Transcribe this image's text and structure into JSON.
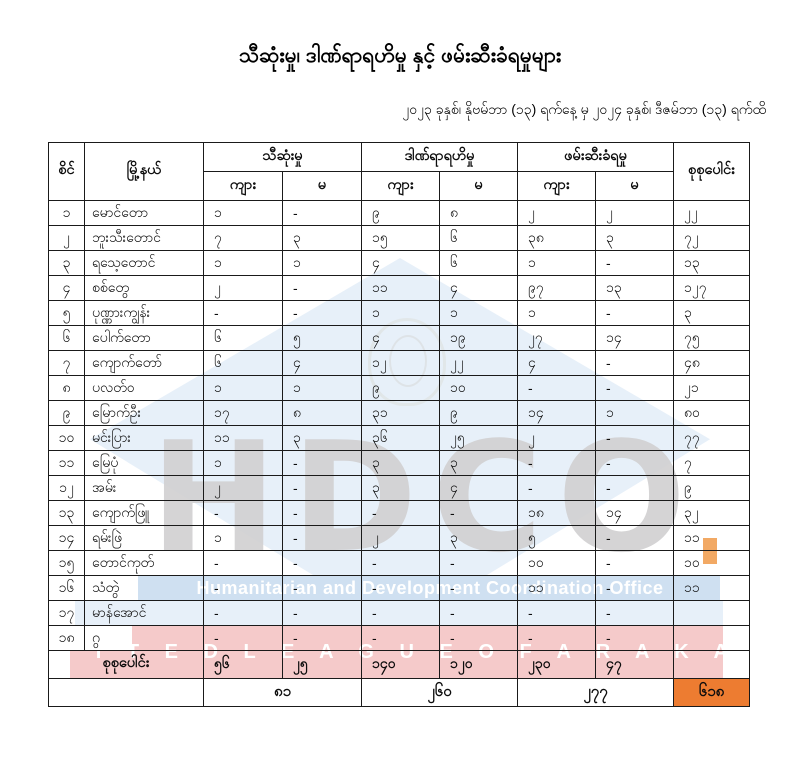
{
  "page": {
    "title": "သီဆုံးမှု၊ ဒါဏ်ရာရဟိမှု နှင့် ဖမ်းဆီးခံရမှုများ",
    "date_range": "၂၀၂၃ ခုနှစ်၊ နိုဗမ်ဘာ (၁၃) ရက်နေ့ မှ ၂၀၂၄ ခုနှစ်၊ ဒီဇမ်ဘာ (၁၃) ရက်ထိ"
  },
  "table": {
    "headers": {
      "serial": "စိင်",
      "township": "မြို့နယ်",
      "group_deaths": "သီဆုံးမှု",
      "group_injuries": "ဒါဏ်ရာရဟိမှု",
      "group_arrests": "ဖမ်းဆီးခံရမှု",
      "male": "ကျား",
      "female": "မ",
      "total": "စုစုပေါင်း"
    },
    "rows": [
      {
        "no": "၁",
        "township": "မောင်တော",
        "cells": [
          "၁",
          "-",
          "၉",
          "၈",
          "၂",
          "၂"
        ],
        "total": "၂၂"
      },
      {
        "no": "၂",
        "township": "ဘူးသီးတောင်",
        "cells": [
          "၇",
          "၃",
          "၁၅",
          "၆",
          "၃၈",
          "၃"
        ],
        "total": "၇၂"
      },
      {
        "no": "၃",
        "township": "ရသေ့တောင်",
        "cells": [
          "၁",
          "၁",
          "၄",
          "၆",
          "၁",
          "-"
        ],
        "total": "၁၃"
      },
      {
        "no": "၄",
        "township": "စစ်တွေ",
        "cells": [
          "၂",
          "-",
          "၁၁",
          "၄",
          "၉၇",
          "၁၃"
        ],
        "total": "၁၂၇"
      },
      {
        "no": "၅",
        "township": "ပုဏ္ဏားကျွန်း",
        "cells": [
          "-",
          "-",
          "၁",
          "၁",
          "၁",
          "-"
        ],
        "total": "၃"
      },
      {
        "no": "၆",
        "township": "ပေါက်တော",
        "cells": [
          "၆",
          "၅",
          "၄",
          "၁၉",
          "၂၇",
          "၁၄"
        ],
        "total": "၇၅"
      },
      {
        "no": "၇",
        "township": "ကျောက်တော်",
        "cells": [
          "၆",
          "၄",
          "၁၂",
          "၂၂",
          "၄",
          "-"
        ],
        "total": "၄၈"
      },
      {
        "no": "၈",
        "township": "ပလတ်ဝ",
        "cells": [
          "၁",
          "၁",
          "၉",
          "၁၀",
          "-",
          "-"
        ],
        "total": "၂၁"
      },
      {
        "no": "၉",
        "township": "မြောက်ဦး",
        "cells": [
          "၁၇",
          "၈",
          "၃၁",
          "၉",
          "၁၄",
          "၁"
        ],
        "total": "၈၀"
      },
      {
        "no": "၁၀",
        "township": "မင်းပြား",
        "cells": [
          "၁၁",
          "၃",
          "၃၆",
          "၂၅",
          "၂",
          "-"
        ],
        "total": "၇၇"
      },
      {
        "no": "၁၁",
        "township": "မြေပုံ",
        "cells": [
          "၁",
          "-",
          "၃",
          "၃",
          "-",
          "-"
        ],
        "total": "၇"
      },
      {
        "no": "၁၂",
        "township": "အမ်း",
        "cells": [
          "၂",
          "-",
          "၃",
          "၄",
          "-",
          "-"
        ],
        "total": "၉"
      },
      {
        "no": "၁၃",
        "township": "ကျောက်ဖြူ",
        "cells": [
          "-",
          "-",
          "-",
          "-",
          "၁၈",
          "၁၄"
        ],
        "total": "၃၂"
      },
      {
        "no": "၁၄",
        "township": "ရမ်းဖြဲ",
        "cells": [
          "၁",
          "-",
          "၂",
          "၃",
          "၅",
          "-"
        ],
        "total": "၁၁"
      },
      {
        "no": "၁၅",
        "township": "တောင်ကုတ်",
        "cells": [
          "-",
          "-",
          "-",
          "-",
          "၁၀",
          "-"
        ],
        "total": "၁၀"
      },
      {
        "no": "၁၆",
        "township": "သံတွဲ",
        "cells": [
          "-",
          "-",
          "-",
          "-",
          "၁၁",
          "-"
        ],
        "total": "၁၁"
      },
      {
        "no": "၁၇",
        "township": "မာန်အောင်",
        "cells": [
          "-",
          "-",
          "-",
          "-",
          "-",
          "-"
        ],
        "total": ""
      },
      {
        "no": "၁၈",
        "township": "ဂွ",
        "cells": [
          "-",
          "-",
          "-",
          "-",
          "-",
          "-"
        ],
        "total": ""
      }
    ],
    "totals_row": {
      "label": "စုစုပေါင်း",
      "cells": [
        "၅၆",
        "၂၅",
        "၁၄၀",
        "၁၂၀",
        "၂၃၀",
        "၄၇"
      ],
      "total": ""
    },
    "grand_row": {
      "deaths": "၈၁",
      "injuries": "၂၆၀",
      "arrests": "၂၇၇",
      "grand_total": "၆၁၈"
    }
  },
  "watermark": {
    "acronym": "HDCO",
    "org_full": "Humanitarian and Development Coordination Office",
    "org_caps": "U N I T E D   L E A G U E   O F   A R A K A N",
    "colors": {
      "diamond": "#cfe2f3",
      "band_blue": "#cfe0f1",
      "band_blue_light": "#e7f0f9",
      "band_pink": "#f5caca",
      "letters_gray": "#d2d1d2"
    }
  },
  "highlight": {
    "grand_total_bg": "#ed7c31"
  }
}
